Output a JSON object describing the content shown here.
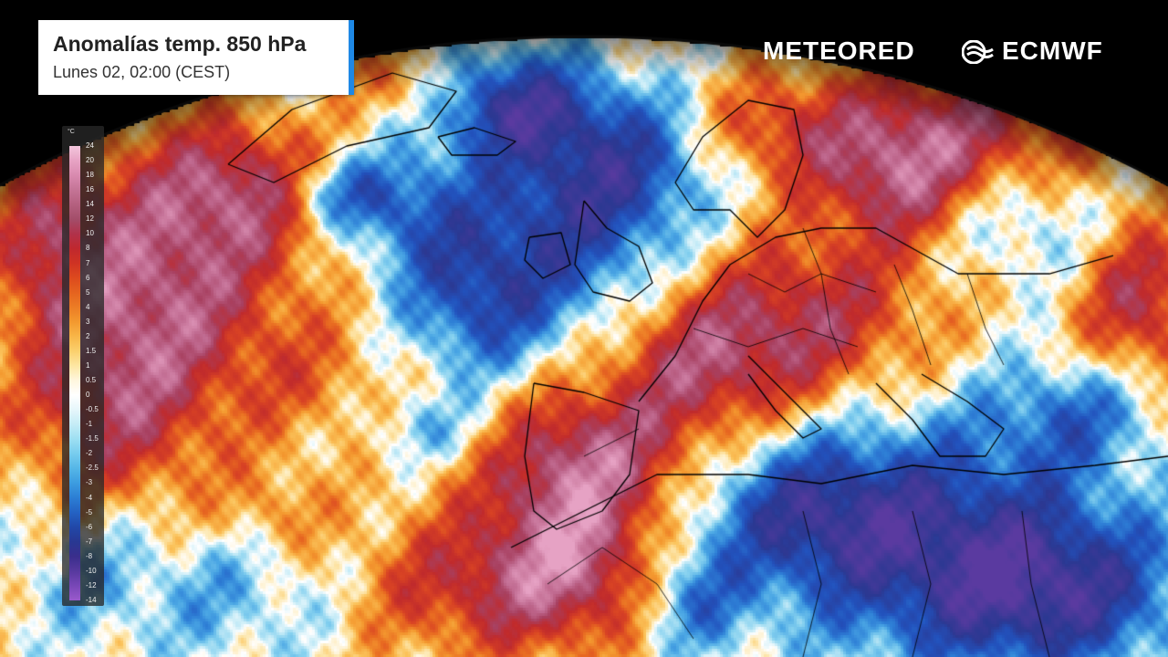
{
  "header": {
    "title": "Anomalías temp. 850 hPa",
    "subtitle": "Lunes 02, 02:00 (CEST)"
  },
  "branding": {
    "meteored": "METEORED",
    "ecmwf": "ECMWF"
  },
  "legend": {
    "unit": "°C",
    "ticks": [
      "24",
      "20",
      "18",
      "16",
      "14",
      "12",
      "10",
      "8",
      "7",
      "6",
      "5",
      "4",
      "3",
      "2",
      "1.5",
      "1",
      "0.5",
      "0",
      "-0.5",
      "-1",
      "-1.5",
      "-2",
      "-2.5",
      "-3",
      "-4",
      "-5",
      "-6",
      "-7",
      "-8",
      "-10",
      "-12",
      "-14"
    ],
    "colors": [
      "#f3c6dc",
      "#e7a3c4",
      "#d98aaf",
      "#c47496",
      "#b4607f",
      "#a34d69",
      "#b1324a",
      "#c0282e",
      "#cf3323",
      "#dd4a1e",
      "#e5631f",
      "#ec7c25",
      "#f3992f",
      "#f8b648",
      "#fbd06d",
      "#fde6a3",
      "#fff6de",
      "#ffffff",
      "#e6f6fb",
      "#c4ecf6",
      "#9ddff2",
      "#77ccee",
      "#55b6e7",
      "#3c9ce0",
      "#2c7ed4",
      "#2462c3",
      "#2148a8",
      "#283892",
      "#3a2e8c",
      "#57399e",
      "#7847b7",
      "#9a5acc"
    ]
  },
  "map": {
    "colors": {
      "ocean_dark": "#000000",
      "globe_edge": "#0a0a0a",
      "coast": "#000000"
    }
  }
}
